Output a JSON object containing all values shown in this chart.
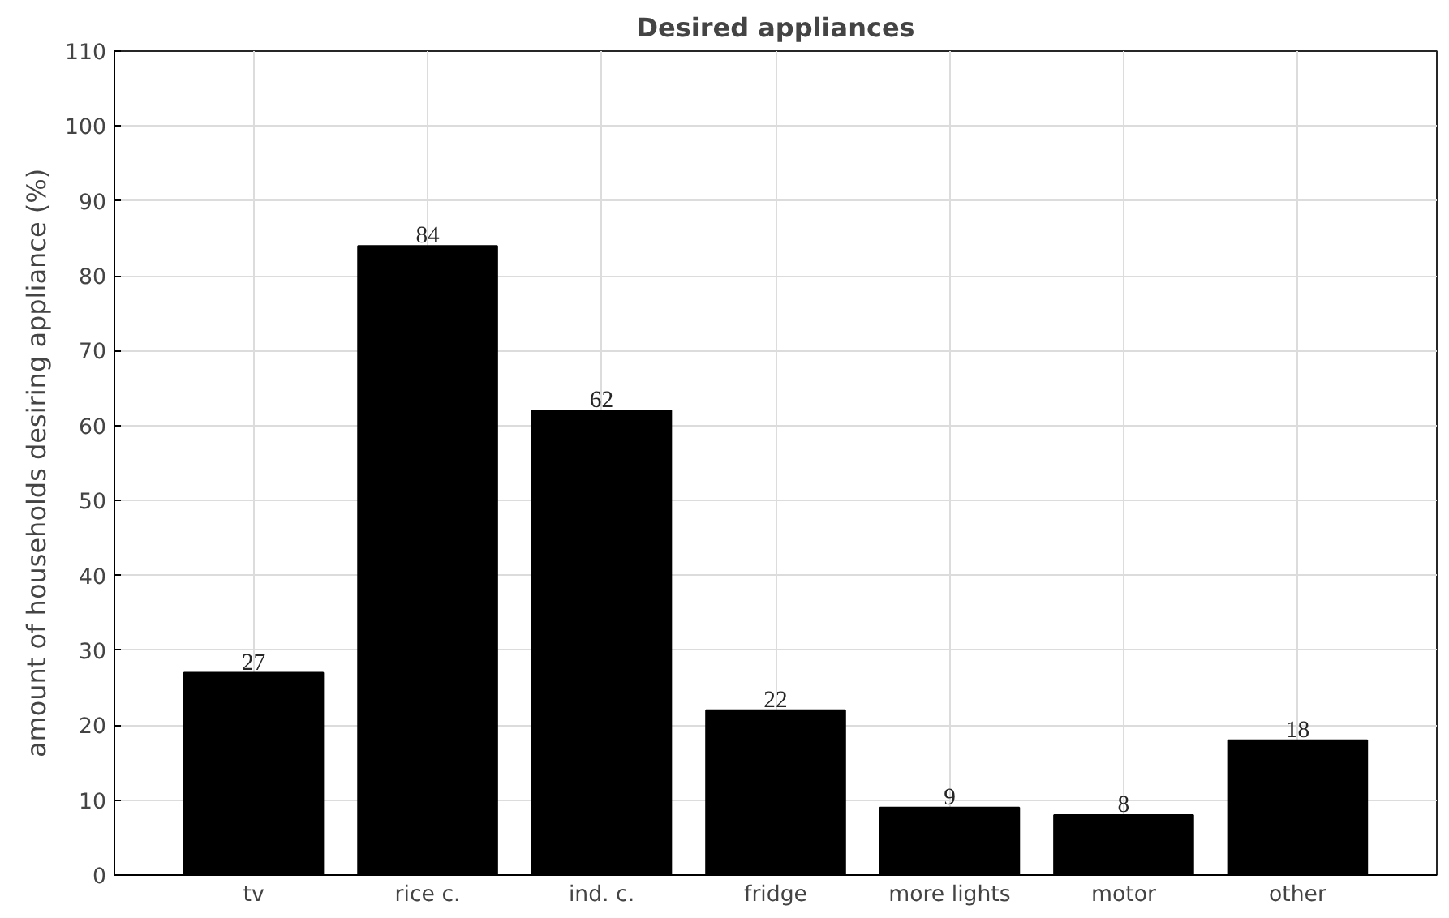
{
  "chart_data": {
    "type": "bar",
    "title": "Desired appliances",
    "ylabel": "amount of households desiring appliance (%)",
    "categories": [
      "tv",
      "rice c.",
      "ind. c.",
      "fridge",
      "more lights",
      "motor",
      "other"
    ],
    "values": [
      27,
      84,
      62,
      22,
      9,
      8,
      18
    ],
    "color": "#000000",
    "ylim": [
      0,
      110
    ],
    "yticks": [
      0,
      10,
      20,
      30,
      40,
      50,
      60,
      70,
      80,
      90,
      100,
      110
    ],
    "grid": true,
    "data_labels": true
  }
}
